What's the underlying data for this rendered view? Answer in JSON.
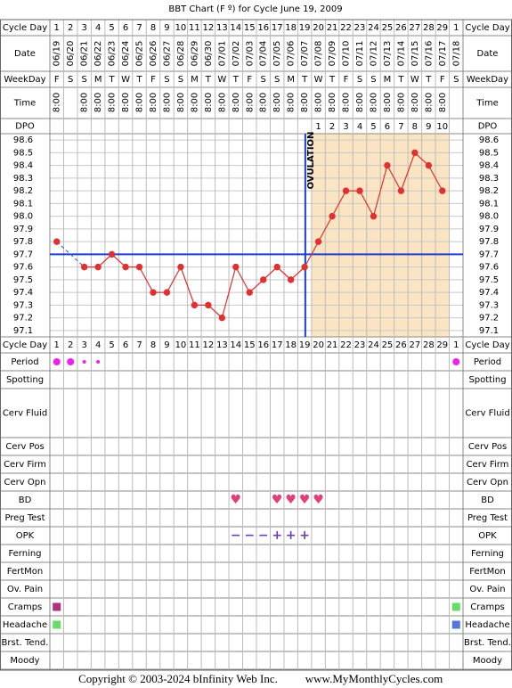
{
  "title": "BBT Chart (F º) for Cycle June 19, 2009",
  "row_labels": {
    "cycle_day": "Cycle Day",
    "date": "Date",
    "weekday": "WeekDay",
    "time": "Time",
    "dpo": "DPO"
  },
  "cycle_days": [
    1,
    2,
    3,
    4,
    5,
    6,
    7,
    8,
    9,
    10,
    11,
    12,
    13,
    14,
    15,
    16,
    17,
    18,
    19,
    20,
    21,
    22,
    23,
    24,
    25,
    26,
    27,
    28,
    29,
    1
  ],
  "weekdays": [
    "F",
    "S",
    "S",
    "M",
    "T",
    "W",
    "T",
    "F",
    "S",
    "S",
    "M",
    "T",
    "W",
    "T",
    "F",
    "S",
    "S",
    "M",
    "T",
    "W",
    "T",
    "F",
    "S",
    "S",
    "M",
    "T",
    "W",
    "T",
    "F",
    "S"
  ],
  "times": [
    "8:00",
    null,
    "8:00",
    "8:00",
    "8:00",
    "8:00",
    "8:00",
    "8:00",
    "8:00",
    "8:00",
    "8:00",
    "8:00",
    "8:00",
    "8:00",
    "8:00",
    "8:00",
    "8:00",
    "8:00",
    "8:00",
    "8:00",
    "8:00",
    "8:00",
    "8:00",
    "8:00",
    "8:00",
    "8:00",
    "8:00",
    "8:00",
    "8:00",
    null
  ],
  "dpo": [
    null,
    null,
    null,
    null,
    null,
    null,
    null,
    null,
    null,
    null,
    null,
    null,
    null,
    null,
    null,
    null,
    null,
    null,
    null,
    1,
    2,
    3,
    4,
    5,
    6,
    7,
    8,
    9,
    10,
    null
  ],
  "chart_data": {
    "type": "line",
    "categories": [
      "06/19",
      "06/20",
      "06/21",
      "06/22",
      "06/23",
      "06/24",
      "06/25",
      "06/26",
      "06/27",
      "06/28",
      "06/29",
      "06/30",
      "07/01",
      "07/02",
      "07/03",
      "07/04",
      "07/05",
      "07/06",
      "07/07",
      "07/08",
      "07/09",
      "07/10",
      "07/11",
      "07/12",
      "07/13",
      "07/14",
      "07/15",
      "07/16",
      "07/17",
      "07/18"
    ],
    "values": [
      97.8,
      null,
      97.6,
      97.6,
      97.7,
      97.6,
      97.6,
      97.4,
      97.4,
      97.6,
      97.3,
      97.3,
      97.2,
      97.6,
      97.4,
      97.5,
      97.6,
      97.5,
      97.6,
      97.8,
      98.0,
      98.2,
      98.2,
      98.0,
      98.4,
      98.2,
      98.5,
      98.4,
      98.2,
      null
    ],
    "color": "#e03030",
    "ylim": [
      97.05,
      98.65
    ],
    "yticks": [
      98.6,
      98.5,
      98.4,
      98.3,
      98.2,
      98.1,
      {
        "value": 98,
        "label": "98.0"
      },
      97.9,
      97.8,
      97.7,
      97.6,
      97.5,
      97.4,
      97.3,
      97.2,
      97.1
    ],
    "grid": true,
    "coverline": 97.7,
    "coverline_color": "#1a3fd0",
    "ovulation_label": "OVULATION"
  },
  "symptoms": [
    {
      "label": "Period",
      "levels": [
        2,
        2,
        1,
        1,
        null,
        null,
        null,
        null,
        null,
        null,
        null,
        null,
        null,
        null,
        null,
        null,
        null,
        null,
        null,
        null,
        null,
        null,
        null,
        null,
        null,
        null,
        null,
        null,
        null,
        2
      ],
      "color": "#ee22ee"
    },
    {
      "label": "Spotting"
    },
    {
      "label": "Cerv Fluid"
    },
    {
      "label": "Cerv Pos"
    },
    {
      "label": "Cerv Firm"
    },
    {
      "label": "Cerv Opn"
    },
    {
      "label": "BD",
      "symbols": [
        null,
        null,
        null,
        null,
        null,
        null,
        null,
        null,
        null,
        null,
        null,
        null,
        null,
        "♥",
        null,
        null,
        "♥",
        "♥",
        "♥",
        "♥",
        null,
        null,
        null,
        null,
        null,
        null,
        null,
        null,
        null,
        null
      ],
      "color": "#e0407a"
    },
    {
      "label": "Preg Test"
    },
    {
      "label": "OPK",
      "symbols": [
        null,
        null,
        null,
        null,
        null,
        null,
        null,
        null,
        null,
        null,
        null,
        null,
        null,
        "−",
        "−",
        "−",
        "+",
        "+",
        "+",
        null,
        null,
        null,
        null,
        null,
        null,
        null,
        null,
        null,
        null,
        null
      ],
      "color": "#6a3fb0"
    },
    {
      "label": "Ferning"
    },
    {
      "label": "FertMon"
    },
    {
      "label": "Ov. Pain"
    },
    {
      "label": "Cramps",
      "colors": [
        "#b0307e",
        null,
        null,
        null,
        null,
        null,
        null,
        null,
        null,
        null,
        null,
        null,
        null,
        null,
        null,
        null,
        null,
        null,
        null,
        null,
        null,
        null,
        null,
        null,
        null,
        null,
        null,
        null,
        null,
        "#66dd66"
      ]
    },
    {
      "label": "Headache",
      "colors": [
        "#66dd66",
        null,
        null,
        null,
        null,
        null,
        null,
        null,
        null,
        null,
        null,
        null,
        null,
        null,
        null,
        null,
        null,
        null,
        null,
        null,
        null,
        null,
        null,
        null,
        null,
        null,
        null,
        null,
        null,
        "#5577dd"
      ]
    },
    {
      "label": "Brst. Tend."
    },
    {
      "label": "Moody"
    }
  ],
  "footer": {
    "copyright": "Copyright © 2003-2024 bInfinity Web Inc.",
    "site": "www.MyMonthlyCycles.com"
  }
}
